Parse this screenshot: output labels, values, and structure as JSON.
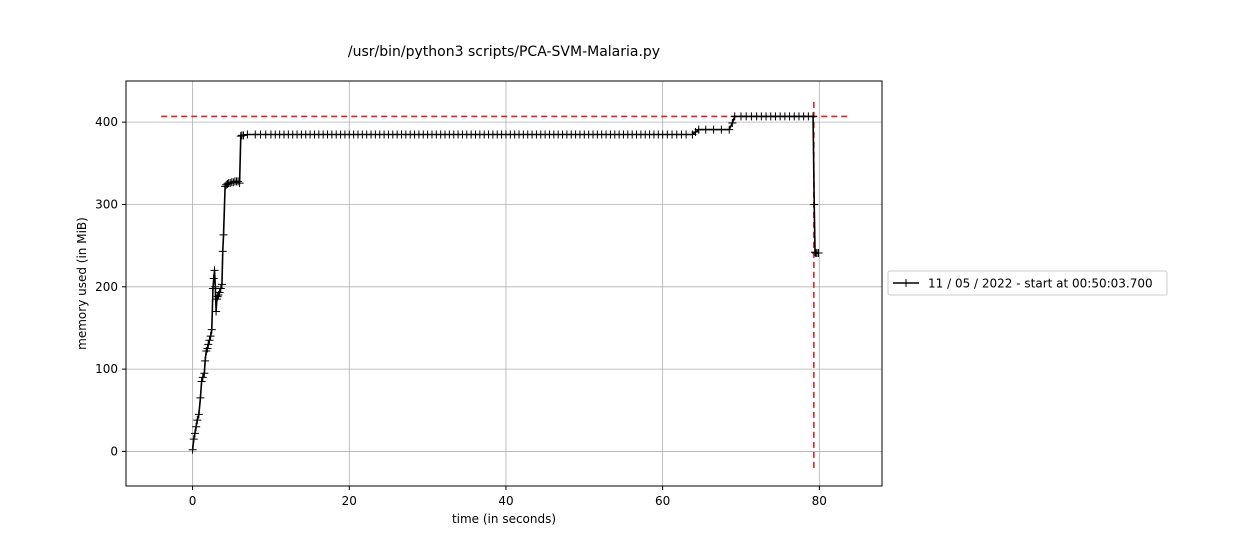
{
  "chart_data": {
    "type": "line",
    "title": "/usr/bin/python3 scripts/PCA-SVM-Malaria.py",
    "xlabel": "time (in seconds)",
    "ylabel": "memory used (in MiB)",
    "xlim": [
      -8.5,
      88.0
    ],
    "ylim": [
      -42,
      450
    ],
    "xticks": [
      0,
      20,
      40,
      60,
      80
    ],
    "yticks": [
      0,
      100,
      200,
      300,
      400
    ],
    "grid": true,
    "legend_position": "right-outside",
    "max_memory_hline": {
      "y": 407,
      "x_range": [
        -4,
        84
      ],
      "color": "#d62728"
    },
    "max_time_vline": {
      "x": 79.3,
      "y_range": [
        -20,
        428
      ],
      "color": "#d62728"
    },
    "series": [
      {
        "name": "11 / 05 / 2022 - start at 00:50:03.700",
        "color": "#000000",
        "marker": "+",
        "x": [
          0.0,
          0.15,
          0.3,
          0.45,
          0.6,
          0.8,
          1.0,
          1.15,
          1.3,
          1.5,
          1.6,
          1.75,
          1.9,
          2.0,
          2.15,
          2.3,
          2.45,
          2.6,
          2.7,
          2.8,
          2.9,
          3.0,
          3.1,
          3.2,
          3.3,
          3.45,
          3.6,
          3.75,
          3.85,
          3.95,
          4.15,
          4.3,
          4.45,
          4.6,
          4.8,
          5.0,
          5.2,
          5.4,
          5.6,
          5.8,
          6.0,
          6.15,
          6.3,
          6.5,
          7.0,
          8.0,
          10.0,
          15.0,
          20.0,
          25.0,
          30.0,
          35.0,
          40.0,
          45.0,
          50.0,
          55.0,
          60.0,
          63.0,
          63.8,
          64.2,
          64.6,
          65.5,
          66.5,
          67.5,
          68.5,
          68.9,
          69.2,
          70.0,
          72.0,
          75.0,
          78.0,
          79.2,
          79.35,
          79.45,
          79.55,
          79.7,
          79.9
        ],
        "y": [
          2,
          15,
          22,
          30,
          38,
          45,
          65,
          85,
          90,
          95,
          110,
          122,
          125,
          130,
          135,
          140,
          148,
          198,
          210,
          220,
          200,
          170,
          185,
          188,
          190,
          193,
          198,
          203,
          243,
          263,
          322,
          324,
          325,
          326,
          326,
          327,
          327,
          328,
          328,
          328,
          326,
          383,
          384,
          384,
          385,
          385,
          385,
          385,
          385,
          385,
          385,
          385,
          385,
          385,
          385,
          385,
          385,
          385,
          385,
          388,
          391,
          391,
          391,
          391,
          391,
          399,
          407,
          407,
          407,
          407,
          407,
          407,
          300,
          242,
          241,
          241,
          241
        ]
      }
    ]
  }
}
